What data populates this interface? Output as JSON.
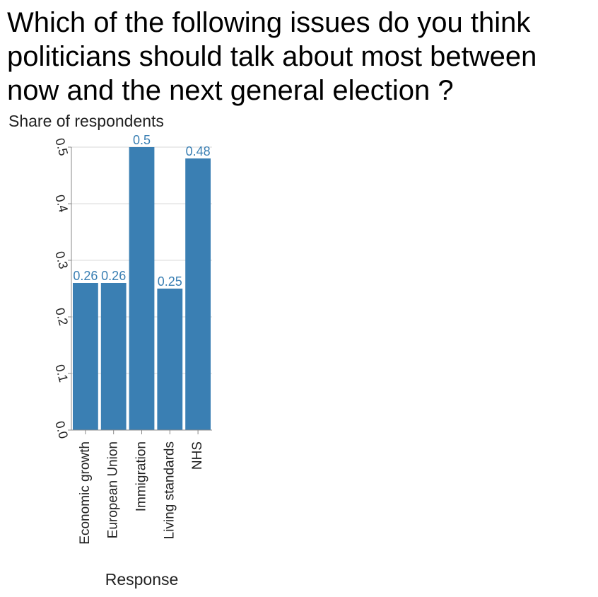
{
  "chart_data": {
    "type": "bar",
    "title": "Which of the following issues do you think politicians should talk about most between now and the next general election ?",
    "ylabel": "Share of respondents",
    "xlabel": "Response",
    "categories": [
      "Economic growth",
      "European Union",
      "Immigration",
      "Living standards",
      "NHS"
    ],
    "values": [
      0.26,
      0.26,
      0.5,
      0.25,
      0.48
    ],
    "value_labels": [
      "0.26",
      "0.26",
      "0.5",
      "0.25",
      "0.48"
    ],
    "ylim": [
      0,
      0.5
    ],
    "yticks": [
      "0.0",
      "0.1",
      "0.2",
      "0.3",
      "0.4",
      "0.5"
    ],
    "grid": true,
    "bar_color": "#3a7fb3",
    "label_color": "#3a7fb3"
  }
}
